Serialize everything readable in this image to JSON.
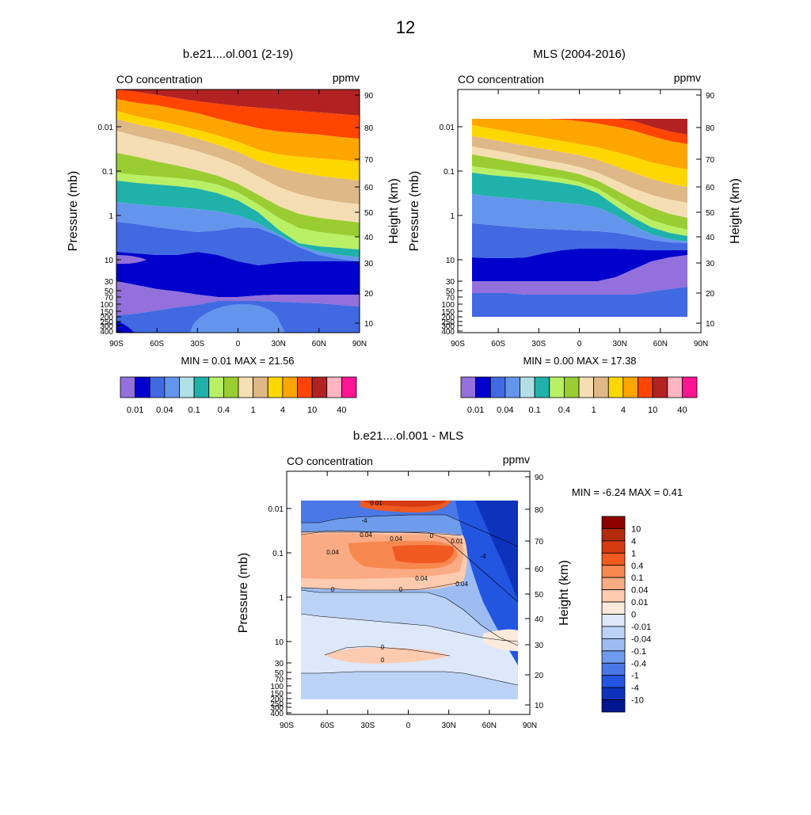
{
  "page": {
    "title": "12"
  },
  "chart_data": [
    {
      "type": "contour",
      "id": "model",
      "title": "b.e21....ol.001 (2-19)",
      "left_label": "CO concentration",
      "right_label": "ppmv",
      "xlabel": "",
      "ylabel": "Pressure (mb)",
      "ylabel_right": "Height (km)",
      "x_ticks": [
        "90S",
        "60S",
        "30S",
        "0",
        "30N",
        "60N",
        "90N"
      ],
      "pressure_ticks": [
        "0.01",
        "0.1",
        "1",
        "10",
        "30",
        "50",
        "70",
        "100",
        "150",
        "200",
        "250",
        "300",
        "400"
      ],
      "height_ticks": [
        "90",
        "80",
        "70",
        "60",
        "50",
        "40",
        "30",
        "20",
        "10"
      ],
      "stats": {
        "min_label": "MIN =",
        "min": "0.01",
        "max_label": "MAX =",
        "max": "21.56"
      }
    },
    {
      "type": "contour",
      "id": "mls",
      "title": "MLS (2004-2016)",
      "left_label": "CO concentration",
      "right_label": "ppmv",
      "xlabel": "",
      "ylabel": "Pressure (mb)",
      "ylabel_right": "Height (km)",
      "x_ticks": [
        "90S",
        "60S",
        "30S",
        "0",
        "30N",
        "60N",
        "90N"
      ],
      "pressure_ticks": [
        "0.01",
        "0.1",
        "1",
        "10",
        "30",
        "50",
        "70",
        "100",
        "150",
        "200",
        "250",
        "300",
        "400"
      ],
      "height_ticks": [
        "90",
        "80",
        "70",
        "60",
        "50",
        "40",
        "30",
        "20",
        "10"
      ],
      "stats": {
        "min_label": "MIN =",
        "min": "0.00",
        "max_label": "MAX =",
        "max": "17.38"
      }
    },
    {
      "type": "contour",
      "id": "diff",
      "title": "b.e21....ol.001 - MLS",
      "left_label": "CO concentration",
      "right_label": "ppmv",
      "xlabel": "",
      "ylabel": "Pressure (mb)",
      "ylabel_right": "Height (km)",
      "x_ticks": [
        "90S",
        "60S",
        "30S",
        "0",
        "30N",
        "60N",
        "90N"
      ],
      "pressure_ticks": [
        "0.01",
        "0.1",
        "1",
        "10",
        "30",
        "50",
        "70",
        "100",
        "150",
        "200",
        "250",
        "300",
        "400"
      ],
      "height_ticks": [
        "90",
        "80",
        "70",
        "60",
        "50",
        "40",
        "30",
        "20",
        "10"
      ],
      "stats": {
        "min_label": "MIN =",
        "min": "-6.24",
        "max_label": "MAX =",
        "max": "0.41"
      },
      "contour_labels": [
        "0.01",
        "-4",
        "0.04",
        "0.04",
        "0",
        "0.01",
        "0.04",
        "0.04",
        "0",
        "0",
        "-4",
        "0.04",
        "0",
        "0"
      ]
    }
  ],
  "colorbars": {
    "abs": {
      "colors": [
        "#9370db",
        "#0000cd",
        "#4169e1",
        "#6495ed",
        "#b0e0e6",
        "#20b2aa",
        "#b9f066",
        "#9acd32",
        "#f5deb3",
        "#deb887",
        "#ffd700",
        "#ffa500",
        "#ff4500",
        "#b22222",
        "#ffb6c1",
        "#ff1493"
      ],
      "labels": [
        "0.01",
        "0.04",
        "0.1",
        "0.4",
        "1",
        "4",
        "10",
        "40"
      ]
    },
    "diff": {
      "colors": [
        "#8b0000",
        "#b22c0c",
        "#d63a10",
        "#f05a20",
        "#f78850",
        "#fbab84",
        "#fdcbb0",
        "#fdeadc",
        "#dde8fa",
        "#bcd2f6",
        "#9cbcf2",
        "#6f9bec",
        "#4a78e6",
        "#2255e0",
        "#0d33bd",
        "#00168f"
      ],
      "labels": [
        "10",
        "4",
        "1",
        "0.4",
        "0.1",
        "0.04",
        "0.01",
        "0",
        "-0.01",
        "-0.04",
        "-0.1",
        "-0.4",
        "-1",
        "-4",
        "-10"
      ]
    }
  }
}
